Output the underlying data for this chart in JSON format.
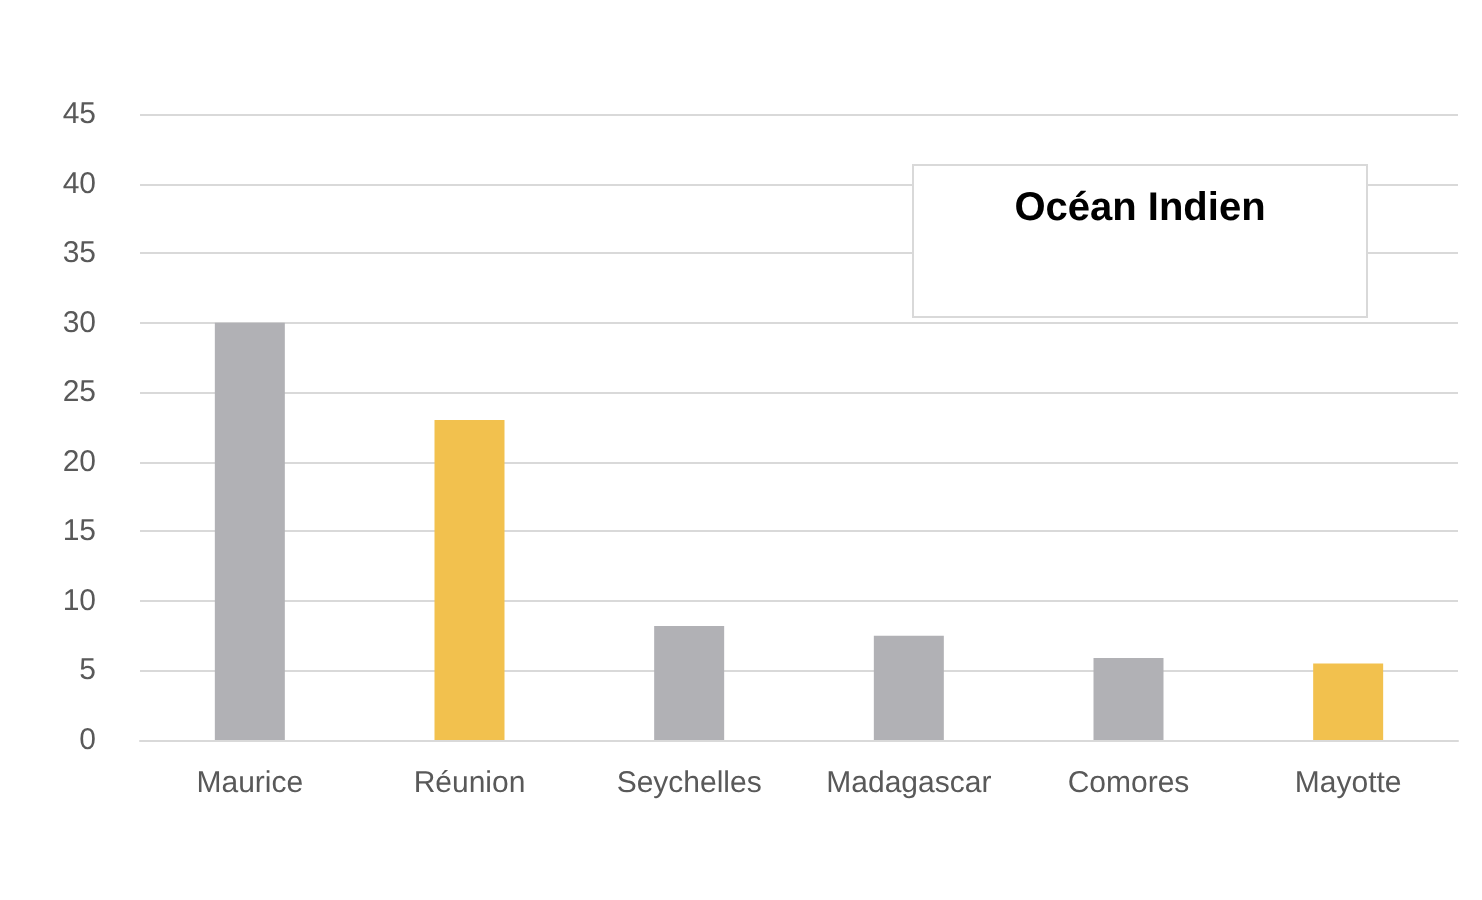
{
  "chart_data": {
    "type": "bar",
    "categories": [
      "Maurice",
      "Réunion",
      "Seychelles",
      "Madagascar",
      "Comores",
      "Mayotte"
    ],
    "values": [
      30,
      23,
      8.2,
      7.5,
      5.9,
      5.5
    ],
    "colors": [
      "#b1b1b5",
      "#f2c14e",
      "#b1b1b5",
      "#b1b1b5",
      "#b1b1b5",
      "#f2c14e"
    ],
    "ylim": [
      0,
      45
    ],
    "yticks": [
      0,
      5,
      10,
      15,
      20,
      25,
      30,
      35,
      40,
      45
    ],
    "grid": "y",
    "annotations": [
      "Océan Indien"
    ]
  }
}
